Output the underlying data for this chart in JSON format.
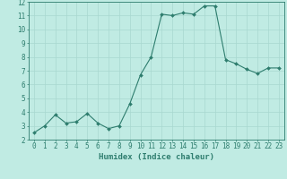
{
  "x": [
    0,
    1,
    2,
    3,
    4,
    5,
    6,
    7,
    8,
    9,
    10,
    11,
    12,
    13,
    14,
    15,
    16,
    17,
    18,
    19,
    20,
    21,
    22,
    23
  ],
  "y": [
    2.5,
    3.0,
    3.8,
    3.2,
    3.3,
    3.9,
    3.2,
    2.8,
    3.0,
    4.6,
    6.7,
    8.0,
    11.1,
    11.0,
    11.2,
    11.1,
    11.7,
    11.7,
    7.8,
    7.5,
    7.1,
    6.8,
    7.2,
    7.2
  ],
  "line_color": "#2e7d6e",
  "marker": "D",
  "marker_size": 2.0,
  "bg_color": "#c0ebe3",
  "grid_color": "#a8d8d0",
  "xlabel": "Humidex (Indice chaleur)",
  "ylim": [
    2,
    12
  ],
  "xlim_min": -0.5,
  "xlim_max": 23.5,
  "yticks": [
    2,
    3,
    4,
    5,
    6,
    7,
    8,
    9,
    10,
    11,
    12
  ],
  "xticks": [
    0,
    1,
    2,
    3,
    4,
    5,
    6,
    7,
    8,
    9,
    10,
    11,
    12,
    13,
    14,
    15,
    16,
    17,
    18,
    19,
    20,
    21,
    22,
    23
  ],
  "label_fontsize": 6.5,
  "tick_fontsize": 5.5,
  "lw": 0.8
}
